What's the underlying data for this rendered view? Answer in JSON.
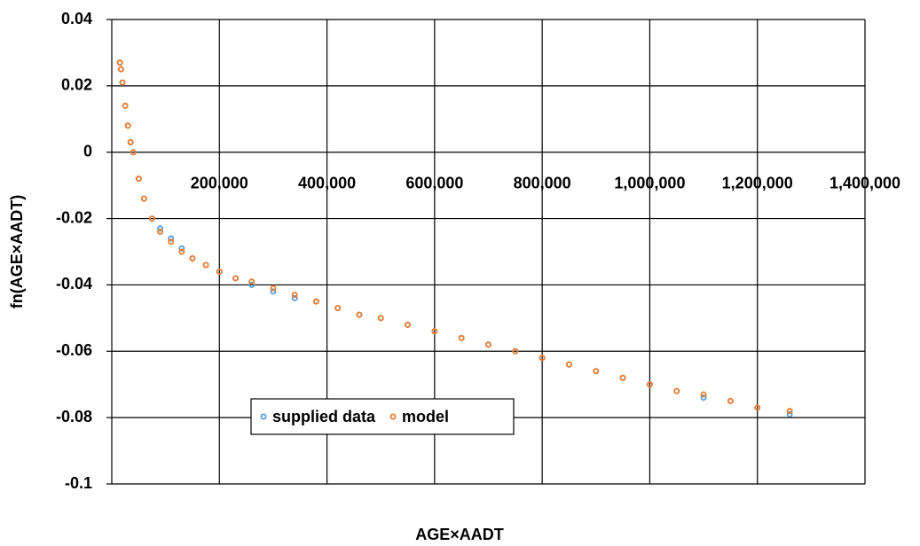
{
  "chart_data": {
    "type": "scatter",
    "x_label": "AGE×AADT",
    "y_label": "fn(AGE×AADT)",
    "x": [
      15000,
      17000,
      20000,
      25000,
      30000,
      35000,
      40000,
      50000,
      60000,
      75000,
      90000,
      110000,
      130000,
      150000,
      175000,
      200000,
      230000,
      260000,
      300000,
      340000,
      380000,
      420000,
      460000,
      500000,
      550000,
      600000,
      650000,
      700000,
      750000,
      800000,
      850000,
      900000,
      950000,
      1000000,
      1050000,
      1100000,
      1150000,
      1200000,
      1260000
    ],
    "series": [
      {
        "name": "supplied data",
        "color": "#5b9bd5",
        "values": [
          0.027,
          0.025,
          0.021,
          0.014,
          0.008,
          0.003,
          0.0,
          -0.008,
          -0.014,
          -0.02,
          -0.023,
          -0.026,
          -0.029,
          -0.032,
          -0.034,
          -0.036,
          -0.038,
          -0.04,
          -0.042,
          -0.044,
          -0.045,
          -0.047,
          -0.049,
          -0.05,
          -0.052,
          -0.054,
          -0.056,
          -0.058,
          -0.06,
          -0.062,
          -0.064,
          -0.066,
          -0.068,
          -0.07,
          -0.072,
          -0.074,
          -0.075,
          -0.077,
          -0.079
        ]
      },
      {
        "name": "model",
        "color": "#ed7d31",
        "values": [
          0.027,
          0.025,
          0.021,
          0.014,
          0.008,
          0.003,
          0.0,
          -0.008,
          -0.014,
          -0.02,
          -0.024,
          -0.027,
          -0.03,
          -0.032,
          -0.034,
          -0.036,
          -0.038,
          -0.039,
          -0.041,
          -0.043,
          -0.045,
          -0.047,
          -0.049,
          -0.05,
          -0.052,
          -0.054,
          -0.056,
          -0.058,
          -0.06,
          -0.062,
          -0.064,
          -0.066,
          -0.068,
          -0.07,
          -0.072,
          -0.073,
          -0.075,
          -0.077,
          -0.078
        ]
      }
    ],
    "xlim": [
      0,
      1400000
    ],
    "xticks": [
      {
        "value": 200000,
        "label": "200,000"
      },
      {
        "value": 400000,
        "label": "400,000"
      },
      {
        "value": 600000,
        "label": "600,000"
      },
      {
        "value": 800000,
        "label": "800,000"
      },
      {
        "value": 1000000,
        "label": "1,000,000"
      },
      {
        "value": 1200000,
        "label": "1,200,000"
      },
      {
        "value": 1400000,
        "label": "1,400,000"
      }
    ],
    "ylim": [
      -0.1,
      0.04
    ],
    "yticks": [
      -0.1,
      -0.08,
      -0.06,
      -0.04,
      -0.02,
      0,
      0.02,
      0.04
    ],
    "grid": true,
    "legend": "lower left"
  }
}
